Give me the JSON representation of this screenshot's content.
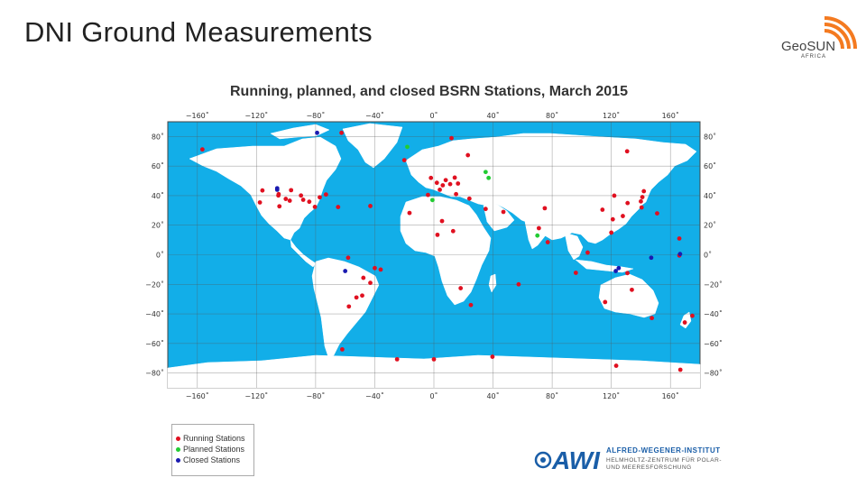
{
  "slide": {
    "title": "DNI Ground Measurements"
  },
  "logos": {
    "geosun": {
      "line1": "GeoSUN",
      "line2": "AFRICA"
    },
    "awi": {
      "mark": "AWI",
      "line1": "ALFRED-WEGENER-INSTITUT",
      "line2": "HELMHOLTZ-ZENTRUM FÜR POLAR- UND MEERESFORSCHUNG"
    }
  },
  "map": {
    "title": "Running, planned, and closed BSRN Stations, March 2015",
    "lon_ticks": [
      "−160˚",
      "−120˚",
      "−80˚",
      "−40˚",
      "0˚",
      "40˚",
      "80˚",
      "120˚",
      "160˚"
    ],
    "lon_values": [
      -160,
      -120,
      -80,
      -40,
      0,
      40,
      80,
      120,
      160
    ],
    "lat_ticks_left": [
      "80˚",
      "60˚",
      "40˚",
      "20˚",
      "0˚",
      "−20˚",
      "−40˚",
      "−60˚",
      "−80˚"
    ],
    "lat_values": [
      80,
      60,
      40,
      20,
      0,
      -20,
      -40,
      -60,
      -80
    ],
    "colors": {
      "ocean": "#12aee8",
      "land": "#ffffff",
      "grid": "#555555",
      "running": "#e01020",
      "planned": "#22cc33",
      "closed": "#1a1ab0"
    },
    "legend": [
      {
        "label": "Running Stations",
        "color": "#e01020"
      },
      {
        "label": "Planned Stations",
        "color": "#22cc33"
      },
      {
        "label": "Closed Stations",
        "color": "#1a1ab0"
      }
    ],
    "stations": {
      "running": [
        [
          -156.6,
          71.3
        ],
        [
          -97.5,
          36.6
        ],
        [
          -105.2,
          40.1
        ],
        [
          -89.9,
          40.1
        ],
        [
          -77.2,
          38.9
        ],
        [
          -80.5,
          32.4
        ],
        [
          -64.8,
          32.3
        ],
        [
          -117.7,
          35.4
        ],
        [
          -100.2,
          37.8
        ],
        [
          -88.4,
          37.2
        ],
        [
          -96.6,
          43.7
        ],
        [
          -105.0,
          41.0
        ],
        [
          -84.3,
          35.9
        ],
        [
          -116.0,
          43.5
        ],
        [
          -73.0,
          40.8
        ],
        [
          -104.5,
          32.8
        ],
        [
          -62.5,
          82.5
        ],
        [
          -43.0,
          -19.0
        ],
        [
          -48.5,
          -27.6
        ],
        [
          -52.4,
          -28.9
        ],
        [
          -47.7,
          -15.6
        ],
        [
          -40.0,
          -9.0
        ],
        [
          -36.0,
          -10.0
        ],
        [
          -57.5,
          -35.0
        ],
        [
          -20.0,
          64.0
        ],
        [
          11.9,
          78.9
        ],
        [
          23.0,
          67.4
        ],
        [
          14.1,
          52.2
        ],
        [
          2.0,
          48.7
        ],
        [
          -4.0,
          40.5
        ],
        [
          6.0,
          47.0
        ],
        [
          16.3,
          48.2
        ],
        [
          11.0,
          47.8
        ],
        [
          -2.0,
          52.0
        ],
        [
          8.0,
          50.5
        ],
        [
          4.0,
          44.0
        ],
        [
          15.0,
          41.0
        ],
        [
          24.0,
          38.0
        ],
        [
          -16.5,
          28.3
        ],
        [
          5.5,
          22.8
        ],
        [
          13.0,
          16.0
        ],
        [
          2.4,
          13.5
        ],
        [
          18.1,
          -22.6
        ],
        [
          25.0,
          -34.0
        ],
        [
          57.3,
          -20.0
        ],
        [
          35.0,
          31.0
        ],
        [
          47.0,
          29.0
        ],
        [
          71.0,
          18.0
        ],
        [
          75.0,
          31.5
        ],
        [
          77.0,
          8.5
        ],
        [
          122.0,
          40.0
        ],
        [
          114.0,
          30.5
        ],
        [
          131.0,
          35.0
        ],
        [
          141.0,
          39.0
        ],
        [
          140.0,
          36.1
        ],
        [
          127.8,
          26.2
        ],
        [
          140.5,
          32.0
        ],
        [
          142.0,
          43.0
        ],
        [
          121.0,
          24.0
        ],
        [
          130.7,
          70.0
        ],
        [
          120.0,
          15.0
        ],
        [
          104.0,
          1.5
        ],
        [
          96.0,
          -12.2
        ],
        [
          115.8,
          -32.0
        ],
        [
          130.9,
          -12.4
        ],
        [
          133.9,
          -23.7
        ],
        [
          147.4,
          -42.8
        ],
        [
          174.8,
          -41.3
        ],
        [
          169.7,
          -45.8
        ],
        [
          166.7,
          -77.8
        ],
        [
          123.3,
          -75.1
        ],
        [
          0.0,
          -70.7
        ],
        [
          -24.9,
          -70.7
        ],
        [
          39.6,
          -69.0
        ],
        [
          -62.0,
          -64.0
        ],
        [
          -43.0,
          33.0
        ],
        [
          -58.0,
          -2.0
        ],
        [
          151.0,
          28.0
        ],
        [
          166.0,
          11.0
        ],
        [
          166.0,
          -0.5
        ]
      ],
      "planned": [
        [
          -18.0,
          73.0
        ],
        [
          35.0,
          56.0
        ],
        [
          37.0,
          52.0
        ],
        [
          -1.0,
          37.0
        ],
        [
          70.0,
          13.0
        ]
      ],
      "closed": [
        [
          -106.0,
          44.0
        ],
        [
          -106.0,
          45.0
        ],
        [
          -79.0,
          82.5
        ],
        [
          -60.0,
          -11.0
        ],
        [
          125.0,
          -9.0
        ],
        [
          147.0,
          -2.0
        ],
        [
          166.5,
          0.5
        ],
        [
          123.0,
          -11.0
        ]
      ]
    }
  }
}
